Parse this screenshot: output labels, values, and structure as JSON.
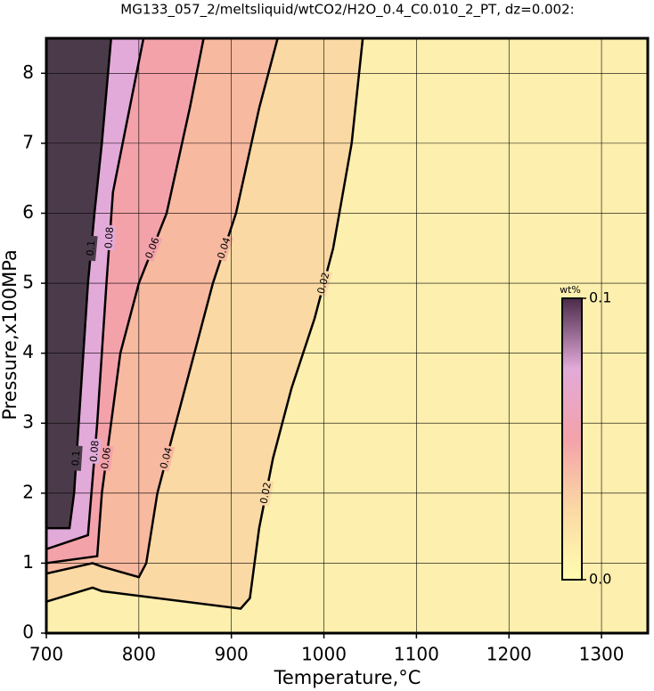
{
  "chart_data": {
    "type": "contour",
    "title": "MG133_057_2/meltsliquid/wtCO2/H2O_0.4_C0.010_2_PT, dz=0.002:",
    "x_label": "Temperature,°C",
    "y_label": "Pressure,x100MPa",
    "xlim": [
      700,
      1350
    ],
    "ylim": [
      0,
      8.5
    ],
    "xticks": [
      700,
      800,
      900,
      1000,
      1100,
      1200,
      1300
    ],
    "yticks": [
      0,
      1,
      2,
      3,
      4,
      5,
      6,
      7,
      8
    ],
    "grid": true,
    "background_color": "#fdefae",
    "contours": [
      {
        "level": 0.02,
        "color": "#fbd9a4",
        "x": [
          1042,
          1030,
          1010,
          990,
          965,
          945,
          930,
          920,
          910,
          760,
          750,
          700
        ],
        "y": [
          8.5,
          7,
          5.5,
          4.5,
          3.5,
          2.5,
          1.5,
          0.5,
          0.35,
          0.6,
          0.65,
          0.45
        ]
      },
      {
        "level": 0.04,
        "color": "#f7b9a0",
        "x": [
          950,
          930,
          905,
          880,
          860,
          840,
          820,
          808,
          800,
          760,
          750,
          700
        ],
        "y": [
          8.5,
          7.5,
          6,
          5,
          4,
          3,
          2,
          1,
          0.8,
          0.95,
          1.0,
          0.85
        ]
      },
      {
        "level": 0.06,
        "color": "#f3a2aa",
        "x": [
          870,
          855,
          830,
          800,
          780,
          770,
          760,
          755,
          700
        ],
        "y": [
          8.5,
          7.5,
          6,
          5,
          4,
          3,
          2,
          1.1,
          1.0
        ]
      },
      {
        "level": 0.08,
        "color": "#e2aad8",
        "x": [
          805,
          790,
          772,
          765,
          760,
          755,
          750,
          745,
          700
        ],
        "y": [
          8.5,
          7.5,
          6.3,
          5,
          4,
          3,
          2.2,
          1.4,
          1.2
        ]
      },
      {
        "level": 0.1,
        "color": "#4b3b4a",
        "x": [
          770,
          760,
          752,
          745,
          740,
          735,
          730,
          725,
          700
        ],
        "y": [
          8.5,
          7,
          6,
          5,
          4,
          3,
          2,
          1.5,
          1.5
        ]
      }
    ],
    "colorbar": {
      "label": "wt%",
      "lim": [
        0,
        0.1
      ],
      "ticks": [
        {
          "value": 0,
          "label": "0.0"
        },
        {
          "value": 0.1,
          "label": "0.1"
        }
      ],
      "colors": [
        "#fffdb0",
        "#fbd9a4",
        "#f3a2aa",
        "#e2aad8",
        "#4b2b4a"
      ]
    }
  }
}
